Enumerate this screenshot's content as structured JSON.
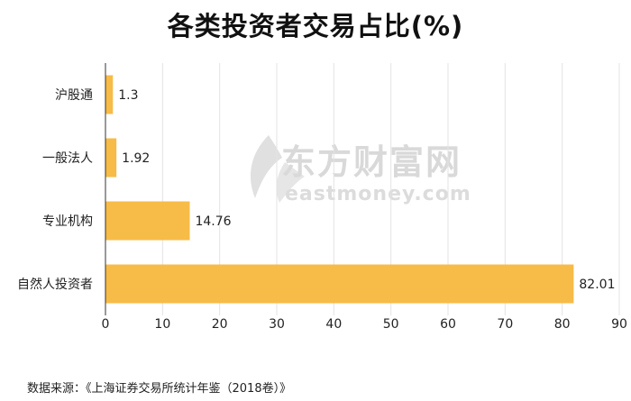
{
  "chart_data": {
    "type": "bar",
    "orientation": "horizontal",
    "title": "各类投资者交易占比(%)",
    "categories": [
      "沪股通",
      "一般法人",
      "专业机构",
      "自然人投资者"
    ],
    "values": [
      1.3,
      1.92,
      14.76,
      82.01
    ],
    "value_labels": [
      "1.3",
      "1.92",
      "14.76",
      "82.01"
    ],
    "xlim": [
      0,
      90
    ],
    "xticks": [
      "0",
      "10",
      "20",
      "30",
      "40",
      "50",
      "60",
      "70",
      "80",
      "90"
    ],
    "grid": true,
    "bar_color": "#f7bb47"
  },
  "watermark": {
    "cn": "东方财富网",
    "en": "eastmoney.com"
  },
  "source": "数据来源：《上海证券交易所统计年鉴（2018卷）》"
}
